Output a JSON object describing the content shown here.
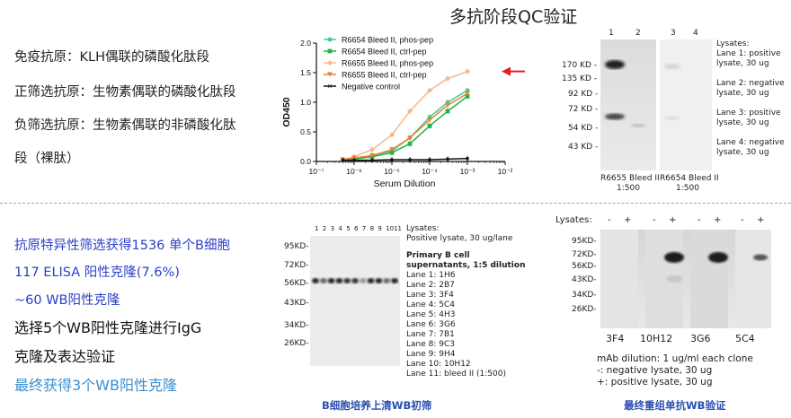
{
  "title": "多抗阶段QC验证",
  "top_left": {
    "line1": "免疫抗原：KLH偶联的磷酸化肽段",
    "line2": "正筛选抗原：生物素偶联的磷酸化肽段",
    "line3": "负筛选抗原：生物素偶联的非磷酸化肽",
    "line4": "段（裸肽）"
  },
  "chart_data": {
    "type": "line",
    "xlabel": "Serum Dilution",
    "ylabel": "OD450",
    "x_scale": "log",
    "xlim": [
      1e-07,
      0.01
    ],
    "ylim": [
      0,
      2.0
    ],
    "x_tick_labels": [
      "10⁻⁷",
      "10⁻⁶",
      "10⁻⁵",
      "10⁻⁴",
      "10⁻³",
      "10⁻²"
    ],
    "y_tick_labels": [
      "0.0",
      "0.5",
      "1.0",
      "1.5",
      "2.0"
    ],
    "x": [
      5e-07,
      1e-06,
      3e-06,
      1e-05,
      3e-05,
      0.0001,
      0.0003,
      0.001
    ],
    "series": [
      {
        "name": "R6654 Bleed II, phos-pep",
        "color": "#3ecf8e",
        "marker": "circle",
        "values": [
          0.02,
          0.05,
          0.1,
          0.18,
          0.4,
          0.75,
          1.0,
          1.2
        ]
      },
      {
        "name": "R6654 Bleed II, ctrl-pep",
        "color": "#22b24c",
        "marker": "square",
        "values": [
          0.02,
          0.04,
          0.08,
          0.15,
          0.3,
          0.6,
          0.85,
          1.1
        ]
      },
      {
        "name": "R6655 Bleed II, phos-pep",
        "color": "#f5b88a",
        "marker": "diamond",
        "values": [
          0.03,
          0.08,
          0.2,
          0.45,
          0.85,
          1.2,
          1.4,
          1.52
        ]
      },
      {
        "name": "R6655 Bleed II, ctrl-pep",
        "color": "#e8823a",
        "marker": "triangle",
        "values": [
          0.03,
          0.06,
          0.1,
          0.2,
          0.4,
          0.7,
          0.95,
          1.15
        ]
      },
      {
        "name": "Negative control",
        "color": "#111111",
        "marker": "cross",
        "values": [
          0.02,
          0.02,
          0.02,
          0.03,
          0.03,
          0.03,
          0.04,
          0.05
        ]
      }
    ],
    "highlight_arrow_color": "#e21d1d",
    "grid": false,
    "legend": "top-left"
  },
  "blot1": {
    "lanes_a": [
      "1",
      "2"
    ],
    "lanes_b": [
      "3",
      "4"
    ],
    "markers": [
      "170 KD -",
      "135 KD -",
      "92 KD -",
      "72 KD -",
      "54 KD -",
      "43 KD -"
    ],
    "lysates_text": [
      "Lysates:",
      "Lane 1: positive",
      "lysate, 30 ug",
      "",
      "Lane 2: negative",
      "lysate, 30 ug",
      "",
      "Lane 3: positive",
      "lysate, 30 ug",
      "",
      "Lane 4: negative",
      "lysate, 30 ug"
    ],
    "caption_a": [
      "R6655 Bleed II",
      "1:500"
    ],
    "caption_b": [
      "R6654 Bleed II",
      "1:500"
    ]
  },
  "bottom_left": {
    "l1": "抗原特异性筛选获得1536 单个B细胞",
    "l2": "117   ELISA 阳性克隆(7.6%)",
    "l3": " ~60    WB阳性克隆",
    "l4": "选择5个WB阳性克隆进行IgG",
    "l5": "克隆及表达验证",
    "l6": "最终获得3个WB阳性克隆"
  },
  "blot2": {
    "lanes": [
      "1",
      "2",
      "3",
      "4",
      "5",
      "6",
      "7",
      "8",
      "9",
      "10",
      "11"
    ],
    "markers": [
      "95KD-",
      "72KD-",
      "56KD-",
      "43KD-",
      "34KD-",
      "26KD-"
    ],
    "lysates": [
      "Lysates:",
      "Positive lysate, 30 ug/lane"
    ],
    "primary_title": [
      "Primary B cell",
      "supernatants, 1:5 dilution"
    ],
    "lane_list": [
      "Lane 1: 1H6",
      "Lane 2: 2B7",
      "Lane 3: 3F4",
      "Lane 4: 5C4",
      "Lane 5: 4H3",
      "Lane 6: 3G6",
      "Lane 7: 7B1",
      "Lane 8: 9C3",
      "Lane 9: 9H4",
      "Lane 10: 10H12",
      "Lane 11: bleed II (1:500)"
    ],
    "caption": "B细胞培养上清WB初筛"
  },
  "blot3": {
    "lysates_label": "Lysates:",
    "signs": [
      "-",
      "+",
      "-",
      "+",
      "-",
      "+",
      "-",
      "+"
    ],
    "markers": [
      "95KD-",
      "72KD-",
      "56KD-",
      "43KD-",
      "34KD-",
      "26KD-"
    ],
    "clones": [
      "3F4",
      "10H12",
      "3G6",
      "5C4"
    ],
    "notes": [
      "mAb dilution: 1 ug/ml each clone",
      "-: negative lysate, 30 ug",
      "+: positive lysate, 30 ug"
    ],
    "caption": "最终重组单抗WB验证"
  }
}
